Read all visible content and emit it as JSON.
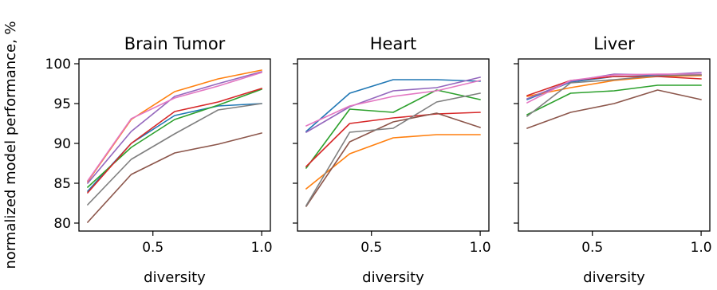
{
  "ylabel": "normalized model performance, %",
  "chart_data": [
    {
      "type": "line",
      "title": "Brain Tumor",
      "xlabel": "diversity",
      "ylabel": "normalized model performance, %",
      "xlim": [
        0.16,
        1.04
      ],
      "ylim": [
        79,
        100.6
      ],
      "xticks": [
        0.5,
        1.0
      ],
      "xtick_labels": [
        "0.5",
        "1.0"
      ],
      "yticks": [
        80,
        85,
        90,
        95,
        100
      ],
      "ytick_labels": [
        "80",
        "85",
        "90",
        "95",
        "100"
      ],
      "x": [
        0.2,
        0.4,
        0.6,
        0.8,
        1.0
      ],
      "series": [
        {
          "color": "#1f77b4",
          "values": [
            84.0,
            90.0,
            93.5,
            94.7,
            95.0
          ]
        },
        {
          "color": "#ff7f0e",
          "values": [
            85.2,
            93.0,
            96.5,
            98.1,
            99.2
          ]
        },
        {
          "color": "#2ca02c",
          "values": [
            84.5,
            89.5,
            93.0,
            94.8,
            96.8
          ]
        },
        {
          "color": "#d62728",
          "values": [
            83.8,
            90.0,
            94.0,
            95.2,
            96.9
          ]
        },
        {
          "color": "#9467bd",
          "values": [
            85.0,
            91.5,
            95.9,
            97.5,
            99.0
          ]
        },
        {
          "color": "#8c564b",
          "values": [
            80.1,
            86.1,
            88.8,
            89.9,
            91.3
          ]
        },
        {
          "color": "#e377c2",
          "values": [
            85.3,
            93.1,
            95.7,
            97.2,
            98.9
          ]
        },
        {
          "color": "#7f7f7f",
          "values": [
            82.3,
            88.0,
            91.2,
            94.2,
            95.0
          ]
        }
      ]
    },
    {
      "type": "line",
      "title": "Heart",
      "xlabel": "diversity",
      "xlim": [
        0.16,
        1.04
      ],
      "ylim": [
        79,
        100.6
      ],
      "xticks": [
        0.5,
        1.0
      ],
      "xtick_labels": [
        "0.5",
        "1.0"
      ],
      "x": [
        0.2,
        0.4,
        0.6,
        0.8,
        1.0
      ],
      "series": [
        {
          "color": "#1f77b4",
          "values": [
            91.5,
            96.3,
            98.0,
            98.0,
            97.8
          ]
        },
        {
          "color": "#ff7f0e",
          "values": [
            84.3,
            88.7,
            90.7,
            91.1,
            91.1
          ]
        },
        {
          "color": "#2ca02c",
          "values": [
            86.9,
            94.3,
            93.9,
            96.7,
            95.5
          ]
        },
        {
          "color": "#d62728",
          "values": [
            87.1,
            92.5,
            93.2,
            93.7,
            93.9
          ]
        },
        {
          "color": "#9467bd",
          "values": [
            91.4,
            94.6,
            96.6,
            97.0,
            98.3
          ]
        },
        {
          "color": "#8c564b",
          "values": [
            82.1,
            90.2,
            92.7,
            93.8,
            92.0
          ]
        },
        {
          "color": "#e377c2",
          "values": [
            92.2,
            94.7,
            95.9,
            96.6,
            97.9
          ]
        },
        {
          "color": "#7f7f7f",
          "values": [
            82.2,
            91.4,
            91.9,
            95.2,
            96.3
          ]
        }
      ]
    },
    {
      "type": "line",
      "title": "Liver",
      "xlabel": "diversity",
      "xlim": [
        0.16,
        1.04
      ],
      "ylim": [
        79,
        100.6
      ],
      "xticks": [
        0.5,
        1.0
      ],
      "xtick_labels": [
        "0.5",
        "1.0"
      ],
      "x": [
        0.2,
        0.4,
        0.6,
        0.8,
        1.0
      ],
      "series": [
        {
          "color": "#1f77b4",
          "values": [
            95.5,
            97.7,
            98.4,
            98.5,
            98.6
          ]
        },
        {
          "color": "#ff7f0e",
          "values": [
            95.9,
            97.0,
            97.9,
            98.4,
            98.5
          ]
        },
        {
          "color": "#2ca02c",
          "values": [
            93.6,
            96.3,
            96.6,
            97.3,
            97.3
          ]
        },
        {
          "color": "#d62728",
          "values": [
            96.0,
            97.9,
            98.4,
            98.4,
            98.1
          ]
        },
        {
          "color": "#9467bd",
          "values": [
            95.6,
            97.8,
            98.7,
            98.6,
            98.9
          ]
        },
        {
          "color": "#8c564b",
          "values": [
            91.9,
            93.9,
            95.0,
            96.7,
            95.5
          ]
        },
        {
          "color": "#e377c2",
          "values": [
            95.1,
            97.9,
            98.6,
            98.7,
            98.7
          ]
        },
        {
          "color": "#7f7f7f",
          "values": [
            93.4,
            97.6,
            98.0,
            98.5,
            98.6
          ]
        }
      ]
    }
  ]
}
